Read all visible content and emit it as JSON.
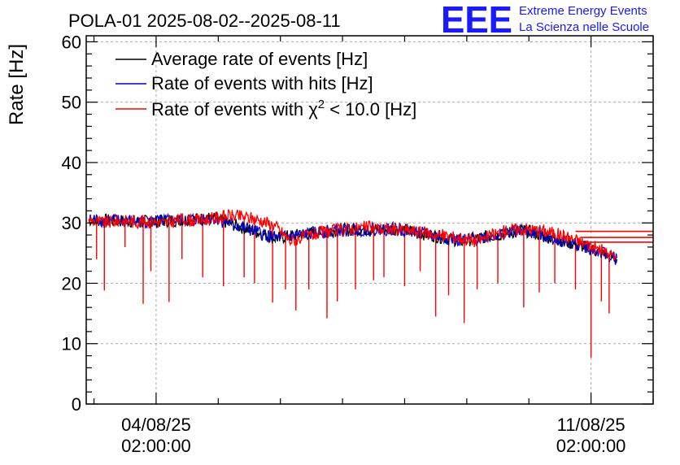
{
  "chart_data": {
    "type": "line",
    "title": "POLA-01 2025-08-02--2025-08-11",
    "ylabel": "Rate [Hz]",
    "xlabel": "",
    "ylim": [
      0,
      61
    ],
    "yticks": [
      0,
      10,
      20,
      30,
      40,
      50,
      60
    ],
    "xlim": [
      "2025-08-02T23:00:00",
      "2025-08-12T02:00:00"
    ],
    "xticks": [
      {
        "value": "2025-08-04T02:00:00",
        "line1": "04/08/25",
        "line2": "02:00:00"
      },
      {
        "value": "2025-08-11T02:00:00",
        "line1": "11/08/25",
        "line2": "02:00:00"
      }
    ],
    "grid": true,
    "legend_position": "top-left",
    "series": [
      {
        "name": "Average rate of events [Hz]",
        "color": "#000000",
        "points": [
          [
            "2025-08-03T00:00:00",
            30.5
          ],
          [
            "2025-08-04T00:00:00",
            30.2
          ],
          [
            "2025-08-05T00:00:00",
            30.8
          ],
          [
            "2025-08-06T00:00:00",
            27.5
          ],
          [
            "2025-08-07T00:00:00",
            28.8
          ],
          [
            "2025-08-08T00:00:00",
            29.0
          ],
          [
            "2025-08-09T00:00:00",
            27.0
          ],
          [
            "2025-08-10T00:00:00",
            28.8
          ],
          [
            "2025-08-11T00:00:00",
            26.0
          ],
          [
            "2025-08-11T12:00:00",
            24.0
          ]
        ]
      },
      {
        "name": "Rate of events with hits [Hz]",
        "color": "#0000cc",
        "points": [
          [
            "2025-08-03T00:00:00",
            30.5
          ],
          [
            "2025-08-04T00:00:00",
            30.2
          ],
          [
            "2025-08-05T00:00:00",
            30.8
          ],
          [
            "2025-08-06T00:00:00",
            27.5
          ],
          [
            "2025-08-07T00:00:00",
            28.8
          ],
          [
            "2025-08-08T00:00:00",
            29.0
          ],
          [
            "2025-08-09T00:00:00",
            27.0
          ],
          [
            "2025-08-10T00:00:00",
            28.8
          ],
          [
            "2025-08-11T00:00:00",
            26.0
          ],
          [
            "2025-08-11T12:00:00",
            24.0
          ]
        ]
      },
      {
        "name": "Rate of events with χ² < 10.0 [Hz]",
        "legend_main": "Rate of events with ",
        "legend_chi": "χ",
        "legend_sup": "2",
        "legend_tail": " < 10.0 [Hz]",
        "color": "#ff0000",
        "points": [
          [
            "2025-08-03T00:00:00",
            30.5
          ],
          [
            "2025-08-03T06:00:00",
            30.0
          ],
          [
            "2025-08-03T12:00:00",
            30.4
          ],
          [
            "2025-08-03T18:00:00",
            30.2
          ],
          [
            "2025-08-04T00:00:00",
            30.3
          ],
          [
            "2025-08-04T06:00:00",
            30.0
          ],
          [
            "2025-08-04T12:00:00",
            30.6
          ],
          [
            "2025-08-04T18:00:00",
            30.4
          ],
          [
            "2025-08-05T00:00:00",
            30.7
          ],
          [
            "2025-08-05T06:00:00",
            31.2
          ],
          [
            "2025-08-05T12:00:00",
            31.0
          ],
          [
            "2025-08-05T18:00:00",
            30.5
          ],
          [
            "2025-08-06T00:00:00",
            29.5
          ],
          [
            "2025-08-06T06:00:00",
            27.0
          ],
          [
            "2025-08-06T12:00:00",
            27.8
          ],
          [
            "2025-08-06T18:00:00",
            28.4
          ],
          [
            "2025-08-07T00:00:00",
            28.8
          ],
          [
            "2025-08-07T06:00:00",
            29.1
          ],
          [
            "2025-08-07T12:00:00",
            29.3
          ],
          [
            "2025-08-07T18:00:00",
            29.0
          ],
          [
            "2025-08-08T00:00:00",
            28.9
          ],
          [
            "2025-08-08T06:00:00",
            28.6
          ],
          [
            "2025-08-08T12:00:00",
            28.2
          ],
          [
            "2025-08-08T18:00:00",
            27.8
          ],
          [
            "2025-08-09T00:00:00",
            27.5
          ],
          [
            "2025-08-09T06:00:00",
            27.0
          ],
          [
            "2025-08-09T12:00:00",
            28.0
          ],
          [
            "2025-08-09T18:00:00",
            28.8
          ],
          [
            "2025-08-10T00:00:00",
            29.0
          ],
          [
            "2025-08-10T06:00:00",
            28.8
          ],
          [
            "2025-08-10T12:00:00",
            28.3
          ],
          [
            "2025-08-10T18:00:00",
            27.5
          ],
          [
            "2025-08-11T00:00:00",
            26.5
          ],
          [
            "2025-08-11T06:00:00",
            25.5
          ],
          [
            "2025-08-11T12:00:00",
            24.0
          ]
        ]
      }
    ],
    "dips": [
      [
        "2025-08-03T03:00:00",
        24.0
      ],
      [
        "2025-08-03T06:00:00",
        18.8
      ],
      [
        "2025-08-03T14:00:00",
        26.0
      ],
      [
        "2025-08-03T21:00:00",
        16.6
      ],
      [
        "2025-08-04T00:00:00",
        22.0
      ],
      [
        "2025-08-04T07:00:00",
        16.9
      ],
      [
        "2025-08-04T12:00:00",
        24.0
      ],
      [
        "2025-08-04T20:00:00",
        21.0
      ],
      [
        "2025-08-05T04:00:00",
        19.5
      ],
      [
        "2025-08-05T12:00:00",
        21.0
      ],
      [
        "2025-08-05T16:00:00",
        20.0
      ],
      [
        "2025-08-05T23:00:00",
        16.8
      ],
      [
        "2025-08-06T04:00:00",
        19.0
      ],
      [
        "2025-08-06T08:00:00",
        15.5
      ],
      [
        "2025-08-06T13:00:00",
        19.0
      ],
      [
        "2025-08-06T20:00:00",
        14.2
      ],
      [
        "2025-08-07T00:00:00",
        17.0
      ],
      [
        "2025-08-07T07:00:00",
        19.0
      ],
      [
        "2025-08-07T14:00:00",
        20.5
      ],
      [
        "2025-08-07T18:00:00",
        21.0
      ],
      [
        "2025-08-08T02:00:00",
        19.5
      ],
      [
        "2025-08-08T08:00:00",
        22.0
      ],
      [
        "2025-08-08T14:00:00",
        14.5
      ],
      [
        "2025-08-08T19:00:00",
        18.0
      ],
      [
        "2025-08-09T01:00:00",
        13.4
      ],
      [
        "2025-08-09T06:00:00",
        19.0
      ],
      [
        "2025-08-09T14:00:00",
        20.0
      ],
      [
        "2025-08-10T00:00:00",
        16.0
      ],
      [
        "2025-08-10T06:00:00",
        18.5
      ],
      [
        "2025-08-10T12:00:00",
        20.0
      ],
      [
        "2025-08-10T20:00:00",
        19.0
      ],
      [
        "2025-08-11T02:00:00",
        7.7
      ],
      [
        "2025-08-11T06:00:00",
        17.0
      ],
      [
        "2025-08-11T09:00:00",
        15.0
      ]
    ],
    "trailing_segments": [
      {
        "y": 28.6,
        "x_start": "2025-08-10T20:00:00",
        "x_end": "2025-08-12T02:00:00"
      },
      {
        "y": 27.6,
        "x_start": "2025-08-10T22:00:00",
        "x_end": "2025-08-12T02:00:00"
      },
      {
        "y": 26.8,
        "x_start": "2025-08-11T00:00:00",
        "x_end": "2025-08-12T02:00:00"
      }
    ]
  },
  "logo": {
    "letters": "EEE",
    "line1": "Extreme Energy Events",
    "line2": "La Scienza nelle Scuole"
  }
}
